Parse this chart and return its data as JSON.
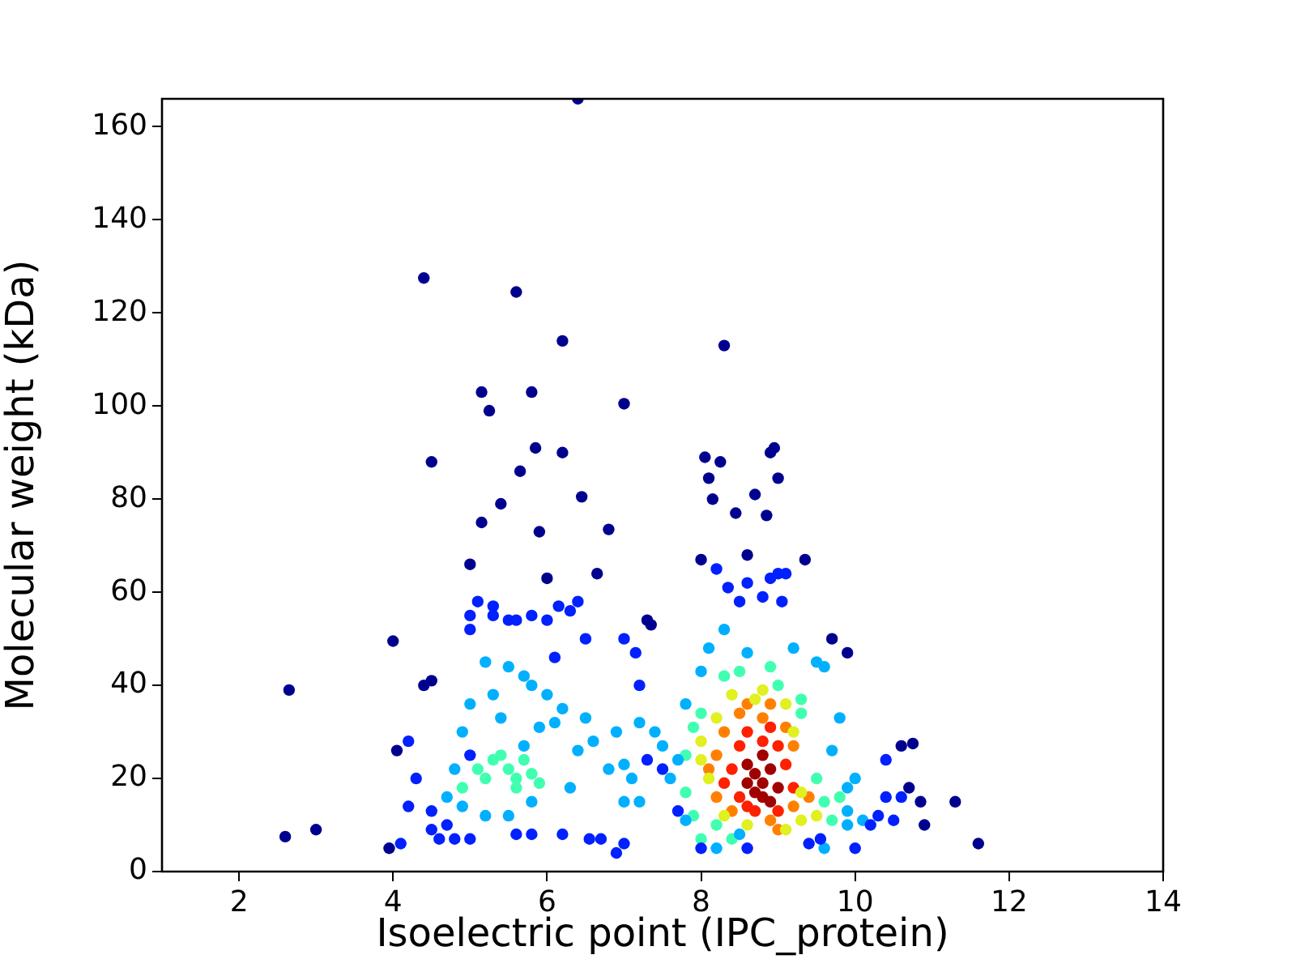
{
  "chart_data": {
    "type": "scatter",
    "xlabel": "Isoelectric point (IPC_protein)",
    "ylabel": "Molecular weight (kDa)",
    "xlim": [
      1,
      14
    ],
    "ylim": [
      0,
      166
    ],
    "xticks": [
      2,
      4,
      6,
      8,
      10,
      12,
      14
    ],
    "yticks": [
      0,
      20,
      40,
      60,
      80,
      100,
      120,
      140,
      160
    ],
    "marker": "circle",
    "series": [
      {
        "color": "#00008f",
        "x": [
          2.6,
          2.65,
          3.0,
          3.95,
          4.0,
          4.05,
          4.4,
          4.5,
          4.4,
          4.5,
          5.0,
          5.15,
          5.25,
          5.15,
          5.4,
          5.6,
          5.65,
          5.8,
          5.85,
          5.9,
          6.2,
          6.2,
          6.0,
          6.45,
          6.4,
          6.8,
          7.0,
          6.65,
          7.3,
          7.35,
          8.05,
          8.25,
          8.3,
          8.45,
          8.9,
          8.95,
          9.0,
          8.7,
          8.85,
          8.15,
          8.1,
          8.0,
          9.35,
          8.6,
          11.6,
          11.3,
          10.85,
          10.9,
          10.6,
          10.75,
          10.7,
          9.9,
          9.7
        ],
        "values": [
          7.5,
          39,
          9,
          5,
          49.5,
          26,
          127.5,
          88,
          40,
          41,
          66,
          103,
          99,
          75,
          79,
          124.5,
          86,
          103,
          91,
          73,
          114,
          90,
          63,
          80.5,
          166,
          73.5,
          100.5,
          64,
          54,
          53,
          89,
          88,
          113,
          77,
          90,
          91,
          84.5,
          81,
          76.5,
          80,
          84.5,
          67,
          67,
          68,
          6,
          15,
          15,
          10,
          27,
          27.5,
          18,
          47,
          50
        ]
      },
      {
        "color": "#0020ff",
        "x": [
          4.1,
          4.2,
          4.3,
          4.2,
          4.5,
          4.6,
          4.8,
          5.0,
          5.0,
          5.1,
          5.3,
          5.3,
          5.5,
          5.6,
          5.8,
          6.0,
          6.15,
          6.3,
          6.4,
          6.5,
          6.1,
          6.55,
          6.7,
          6.9,
          7.0,
          7.0,
          7.15,
          7.2,
          8.6,
          8.8,
          8.9,
          9.0,
          9.1,
          9.05,
          8.5,
          8.35,
          8.2,
          10.4,
          10.5,
          10.3,
          10.2,
          10.6,
          10.4,
          10.0,
          9.4,
          9.55,
          8.0,
          8.6,
          7.7,
          5.6,
          5.8,
          6.2,
          5.0,
          5.0,
          4.7,
          4.5,
          7.3,
          7.5
        ],
        "values": [
          6,
          14,
          20,
          28,
          9,
          7,
          7,
          52,
          55,
          58,
          57,
          55,
          54,
          54,
          55,
          54,
          57,
          56,
          58,
          50,
          46,
          7,
          7,
          4,
          6,
          50,
          47,
          40,
          62,
          59,
          63,
          64,
          64,
          58,
          58,
          61,
          65,
          24,
          11,
          12,
          10,
          16,
          16,
          5,
          6,
          7,
          5,
          5,
          13,
          8,
          8,
          8,
          25,
          7,
          10,
          13,
          24,
          22
        ]
      },
      {
        "color": "#00b0ff",
        "x": [
          5.2,
          5.5,
          5.7,
          5.8,
          6.0,
          6.2,
          5.9,
          6.1,
          6.5,
          6.6,
          6.4,
          6.8,
          7.0,
          7.2,
          7.1,
          7.2,
          6.9,
          5.0,
          5.3,
          5.4,
          4.9,
          4.8,
          5.7,
          4.7,
          4.9,
          5.2,
          5.5,
          5.8,
          6.3,
          7.4,
          7.7,
          7.8,
          8.0,
          8.1,
          8.3,
          8.6,
          9.2,
          9.5,
          9.6,
          9.8,
          9.7,
          9.9,
          10.0,
          9.9,
          9.6,
          8.2,
          8.5,
          7.8,
          7.6,
          7.5,
          7.0,
          10.1,
          9.9
        ],
        "values": [
          45,
          44,
          42,
          40,
          38,
          35,
          31,
          32,
          33,
          28,
          26,
          22,
          23,
          15,
          20,
          32,
          30,
          36,
          38,
          33,
          30,
          22,
          27,
          16,
          14,
          12,
          12,
          15,
          18,
          30,
          24,
          36,
          43,
          48,
          52,
          47,
          48,
          45,
          44,
          33,
          26,
          18,
          20,
          13,
          5,
          5,
          8,
          11,
          20,
          27,
          15,
          11,
          10
        ]
      },
      {
        "color": "#40ffb0",
        "x": [
          5.3,
          5.4,
          5.5,
          5.6,
          5.8,
          5.9,
          5.2,
          5.6,
          5.7,
          5.1,
          4.9,
          7.8,
          7.9,
          8.0,
          8.3,
          8.5,
          8.9,
          9.0,
          9.3,
          7.9,
          8.0,
          8.4,
          8.2,
          9.6,
          9.8,
          9.7,
          9.5,
          9.3,
          7.8
        ],
        "values": [
          24,
          25,
          22,
          20,
          21,
          19,
          20,
          18,
          24,
          22,
          18,
          25,
          31,
          34,
          42,
          43,
          44,
          40,
          37,
          12,
          7,
          7,
          10,
          15,
          16,
          11,
          20,
          34,
          17
        ]
      },
      {
        "color": "#e0f020",
        "x": [
          8.2,
          8.4,
          8.7,
          9.1,
          9.2,
          8.0,
          8.1,
          8.3,
          8.6,
          9.3,
          9.5,
          9.3,
          9.1,
          8.8,
          8.0
        ],
        "values": [
          33,
          38,
          37,
          36,
          30,
          24,
          20,
          12,
          10,
          11,
          12,
          17,
          9,
          39,
          28
        ]
      },
      {
        "color": "#ff8000",
        "x": [
          8.3,
          8.5,
          8.8,
          9.1,
          9.2,
          8.2,
          8.1,
          8.2,
          8.4,
          8.9,
          9.2,
          9.4,
          8.6,
          8.9,
          9.0
        ],
        "values": [
          30,
          34,
          33,
          31,
          27,
          25,
          22,
          16,
          13,
          11,
          14,
          16,
          36,
          36,
          9
        ]
      },
      {
        "color": "#ff2000",
        "x": [
          8.5,
          8.6,
          8.8,
          9.0,
          9.1,
          8.4,
          8.3,
          8.5,
          8.7,
          9.0,
          9.2,
          8.9,
          8.6
        ],
        "values": [
          27,
          30,
          28,
          27,
          23,
          22,
          19,
          16,
          13,
          13,
          18,
          31,
          14
        ]
      },
      {
        "color": "#a00000",
        "x": [
          8.6,
          8.7,
          8.8,
          8.9,
          8.8,
          8.7,
          9.0,
          8.9,
          8.6,
          8.8
        ],
        "values": [
          23,
          21,
          19,
          22,
          25,
          17,
          18,
          15,
          19,
          16
        ]
      }
    ]
  }
}
